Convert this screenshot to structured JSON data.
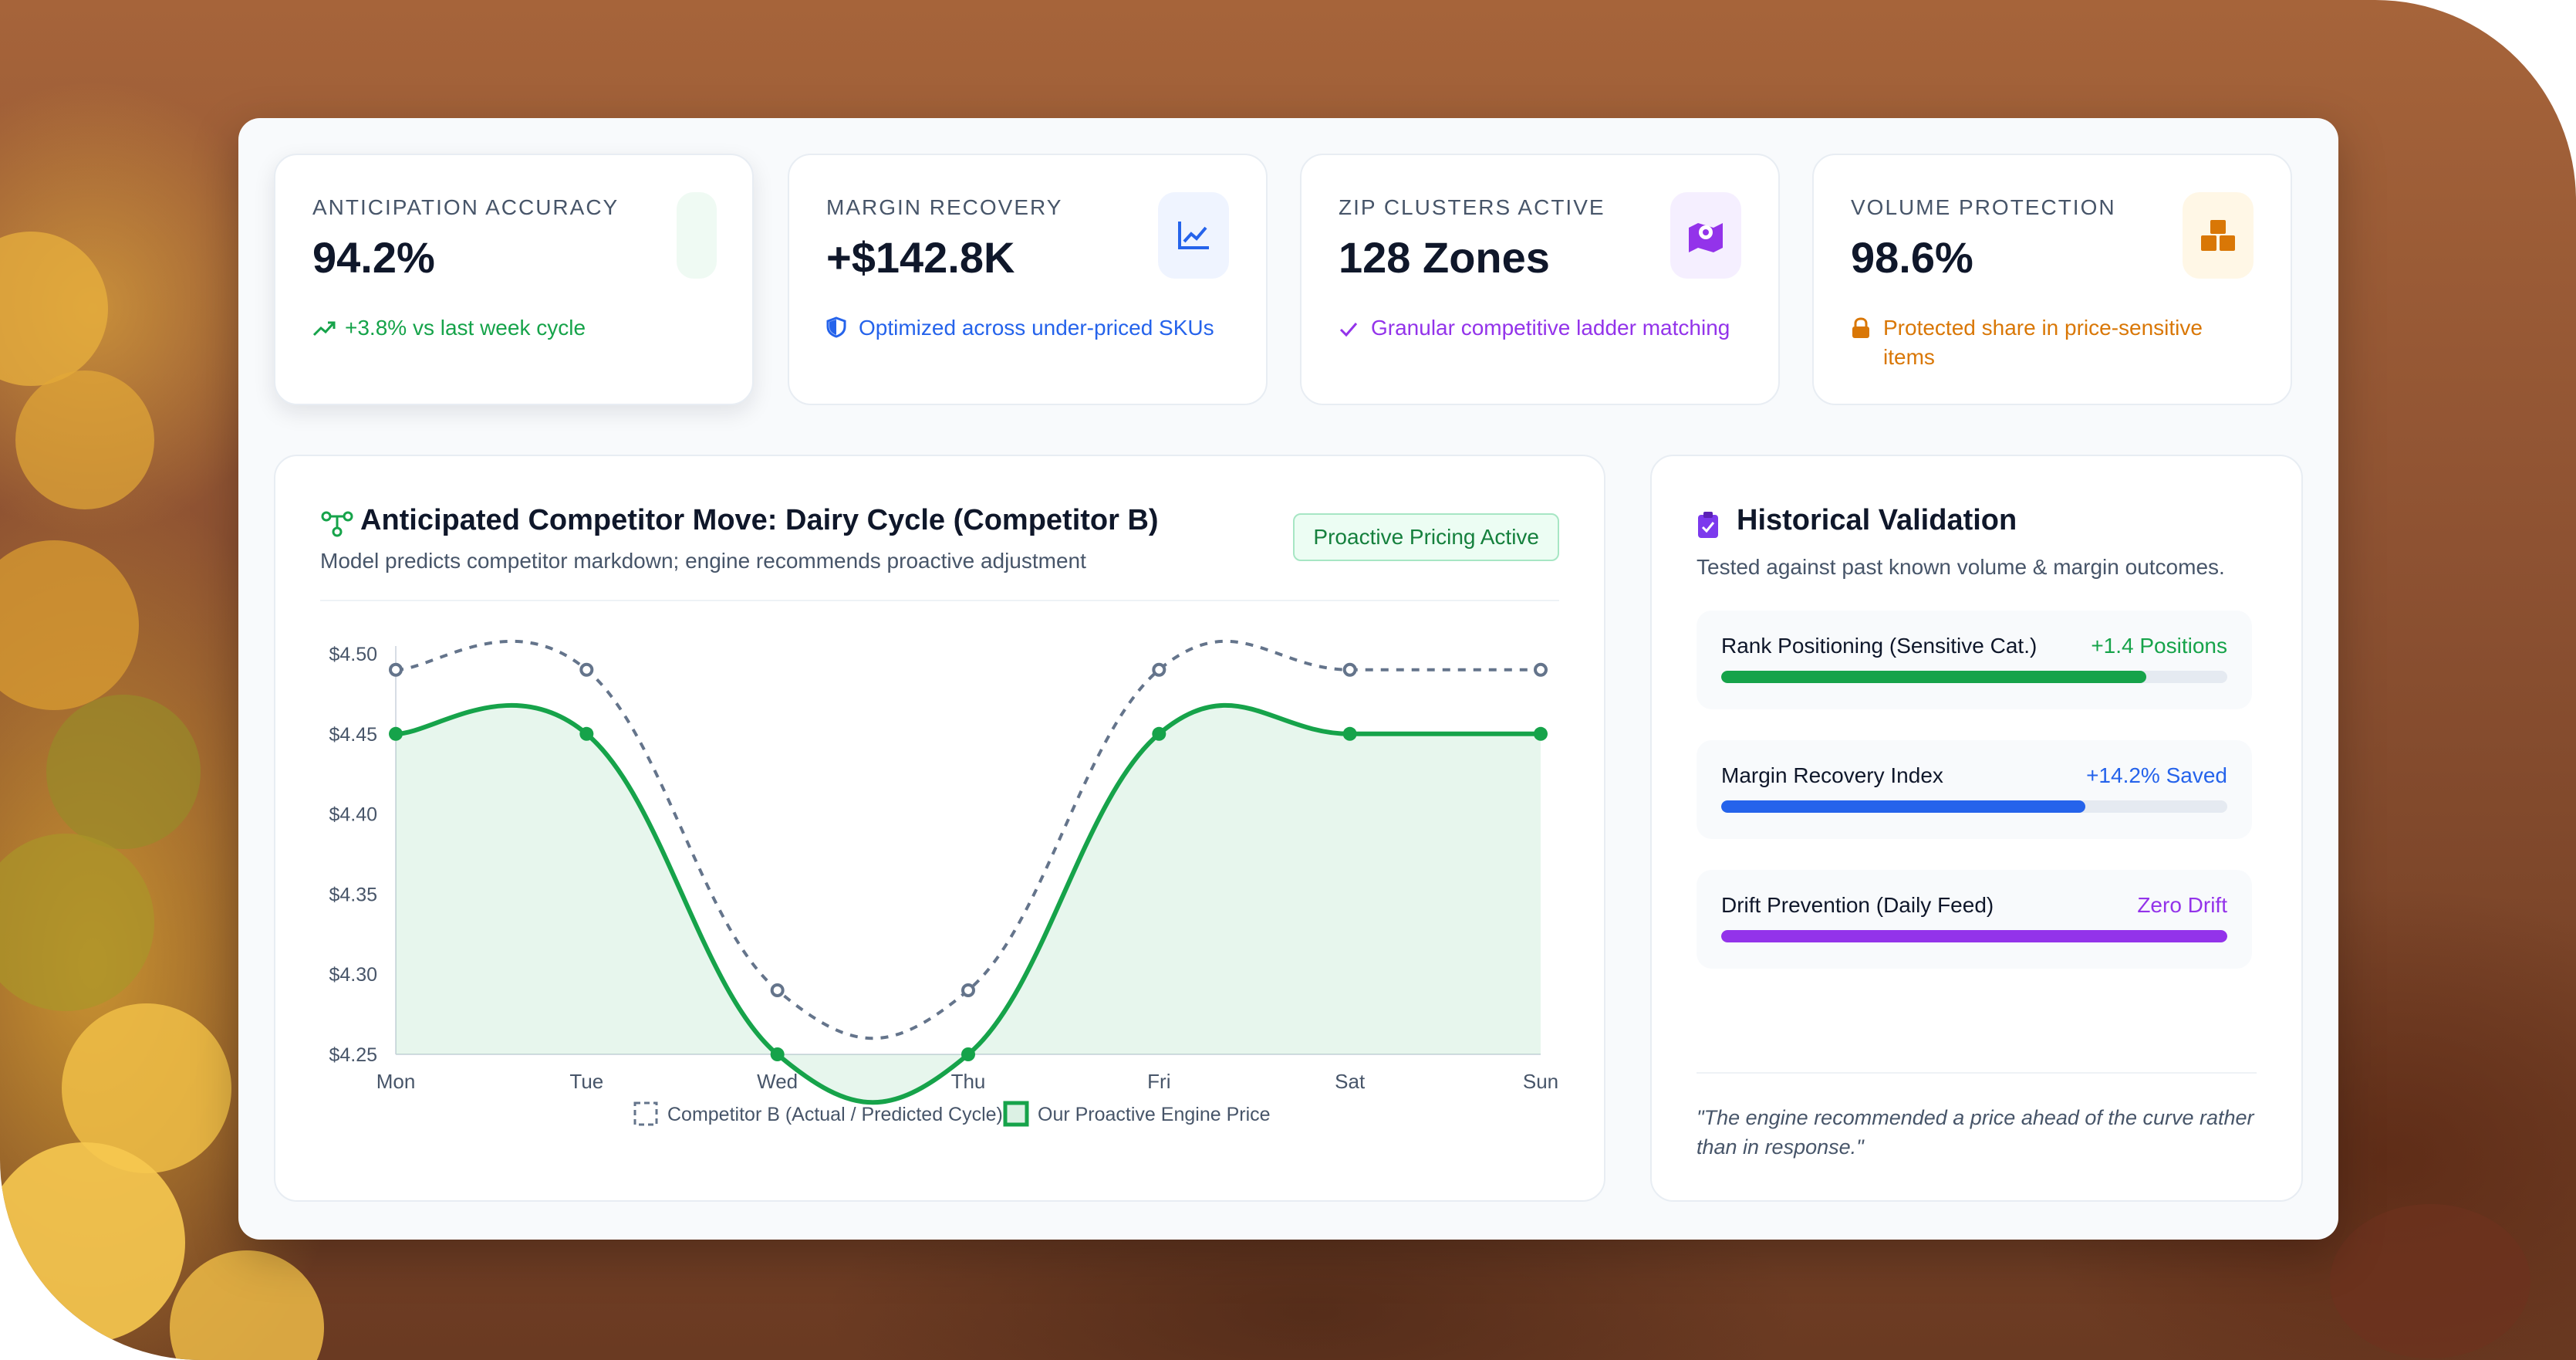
{
  "colors": {
    "green": "#16a34a",
    "blue": "#2563eb",
    "purple": "#9333ea",
    "orange": "#d97706",
    "slate": "#64748b"
  },
  "kpis": [
    {
      "title": "ANTICIPATION ACCURACY",
      "value": "94.2%",
      "sub": "+3.8% vs last week cycle",
      "icon": "trend-up-icon",
      "color": "#16a34a"
    },
    {
      "title": "MARGIN RECOVERY",
      "value": "+$142.8K",
      "sub": "Optimized across under-priced SKUs",
      "icon": "chart-line-icon",
      "color": "#2563eb"
    },
    {
      "title": "ZIP CLUSTERS ACTIVE",
      "value": "128 Zones",
      "sub": "Granular competitive ladder matching",
      "icon": "map-pin-icon",
      "color": "#9333ea"
    },
    {
      "title": "VOLUME PROTECTION",
      "value": "98.6%",
      "sub": "Protected share in price-sensitive items",
      "icon": "boxes-icon",
      "color": "#d97706"
    }
  ],
  "chart_panel": {
    "title": "Anticipated Competitor Move: Dairy Cycle (Competitor B)",
    "subtitle": "Model predicts competitor markdown; engine recommends proactive adjustment",
    "badge": "Proactive Pricing Active"
  },
  "chart_data": {
    "type": "line",
    "categories": [
      "Mon",
      "Tue",
      "Wed",
      "Thu",
      "Fri",
      "Sat",
      "Sun"
    ],
    "y_ticks": [
      "$4.50",
      "$4.45",
      "$4.40",
      "$4.35",
      "$4.30",
      "$4.25"
    ],
    "ylim": [
      4.25,
      4.5
    ],
    "series": [
      {
        "name": "Competitor B (Actual / Predicted Cycle)",
        "values": [
          4.49,
          4.49,
          4.29,
          4.29,
          4.49,
          4.49,
          4.49
        ],
        "color": "#64748b",
        "style": "dashed"
      },
      {
        "name": "Our Proactive Engine Price",
        "values": [
          4.45,
          4.45,
          4.25,
          4.25,
          4.45,
          4.45,
          4.45
        ],
        "color": "#16a34a",
        "style": "solid-filled"
      }
    ],
    "legend_position": "bottom",
    "grid": false
  },
  "validation": {
    "title": "Historical Validation",
    "subtitle": "Tested against past known volume & margin outcomes.",
    "metrics": [
      {
        "label": "Rank Positioning (Sensitive Cat.)",
        "value": "+1.4 Positions",
        "progress": 0.84,
        "color": "#16a34a"
      },
      {
        "label": "Margin Recovery Index",
        "value": "+14.2% Saved",
        "progress": 0.72,
        "color": "#2563eb"
      },
      {
        "label": "Drift Prevention (Daily Feed)",
        "value": "Zero Drift",
        "progress": 1.0,
        "color": "#9333ea"
      }
    ],
    "quote": "\"The engine recommended a price ahead of the curve rather than in response.\""
  }
}
